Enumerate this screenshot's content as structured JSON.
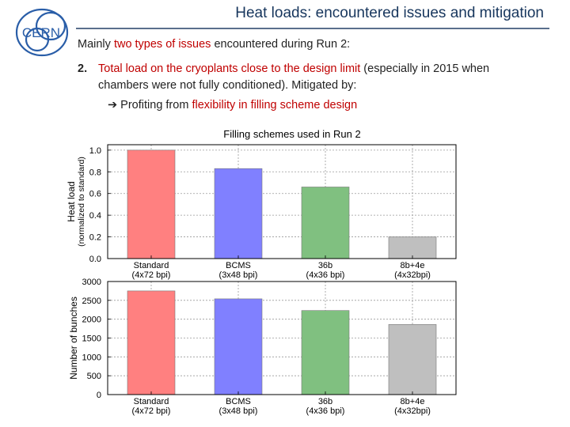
{
  "header": {
    "title": "Heat loads: encountered issues and mitigation",
    "logo_text": "CERN"
  },
  "body": {
    "line1": {
      "pre": "Mainly ",
      "highlight": "two types of issues",
      "post": " encountered during Run 2:"
    },
    "line2": {
      "number": "2.",
      "highlight": "Total load on the cryoplants close to the design limit",
      "post": " (especially in 2015 when"
    },
    "line3": {
      "text": "chambers were not fully conditioned). Mitigated by:"
    },
    "line4": {
      "arrow": "➔",
      "pre": " Profiting from ",
      "highlight": "flexibility in filling scheme design"
    }
  },
  "chart_title": "Filling schemes used in Run 2",
  "chart_data": [
    {
      "type": "bar",
      "categories": [
        "Standard",
        "BCMS",
        "36b",
        "8b+4e"
      ],
      "category_sublabels": [
        "(4x72 bpi)",
        "(3x48 bpi)",
        "(4x36 bpi)",
        "(4x32bpi)"
      ],
      "values": [
        1.0,
        0.83,
        0.66,
        0.2
      ],
      "colors": [
        "#ff8080",
        "#8080ff",
        "#80c080",
        "#bfbfbf"
      ],
      "ylabel": "Heat load",
      "ylabel2": "(normalized to standard)",
      "ylim": [
        0,
        1.05
      ],
      "yticks": [
        0.0,
        0.2,
        0.4,
        0.6,
        0.8,
        1.0
      ],
      "ytick_labels": [
        "0.0",
        "0.2",
        "0.4",
        "0.6",
        "0.8",
        "1.0"
      ],
      "grid": true
    },
    {
      "type": "bar",
      "categories": [
        "Standard",
        "BCMS",
        "36b",
        "8b+4e"
      ],
      "category_sublabels": [
        "(4x72 bpi)",
        "(3x48 bpi)",
        "(4x36 bpi)",
        "(4x32bpi)"
      ],
      "values": [
        2750,
        2540,
        2230,
        1860
      ],
      "colors": [
        "#ff8080",
        "#8080ff",
        "#80c080",
        "#bfbfbf"
      ],
      "ylabel": "Number of bunches",
      "ylim": [
        0,
        3000
      ],
      "yticks": [
        0,
        500,
        1000,
        1500,
        2000,
        2500,
        3000
      ],
      "ytick_labels": [
        "0",
        "500",
        "1000",
        "1500",
        "2000",
        "2500",
        "3000"
      ],
      "grid": true
    }
  ]
}
